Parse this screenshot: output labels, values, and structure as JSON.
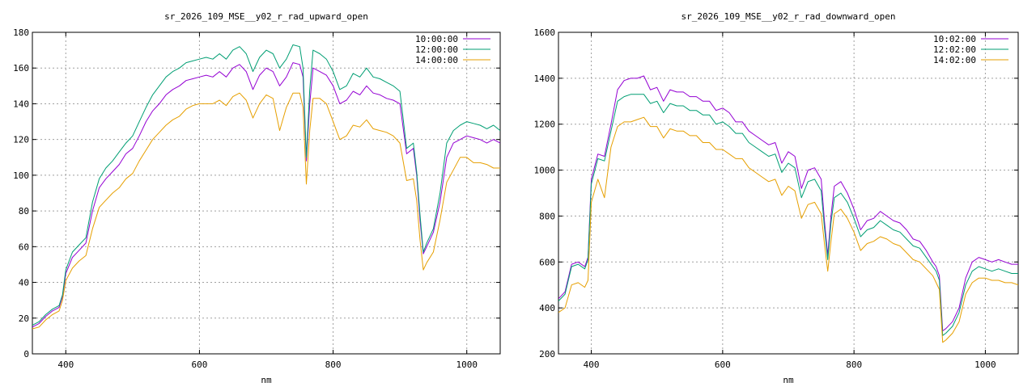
{
  "chart_data": [
    {
      "type": "line",
      "title": "sr_2026_109_MSE__y02_r_rad_upward_open",
      "xlabel": "nm",
      "ylabel": "",
      "xlim": [
        350,
        1050
      ],
      "ylim": [
        0,
        180
      ],
      "xticks": [
        400,
        600,
        800,
        1000
      ],
      "yticks": [
        0,
        20,
        40,
        60,
        80,
        100,
        120,
        140,
        160,
        180
      ],
      "grid": true,
      "legend_position": "top-right",
      "series": [
        {
          "name": "10:00:00",
          "color": "#9400d3",
          "x": [
            350,
            360,
            370,
            380,
            390,
            395,
            400,
            410,
            420,
            430,
            440,
            450,
            460,
            470,
            480,
            490,
            500,
            510,
            520,
            530,
            540,
            550,
            560,
            570,
            580,
            590,
            600,
            610,
            620,
            630,
            640,
            650,
            660,
            670,
            680,
            690,
            700,
            710,
            720,
            730,
            740,
            750,
            755,
            760,
            765,
            770,
            780,
            790,
            800,
            810,
            820,
            830,
            840,
            850,
            860,
            870,
            880,
            890,
            900,
            910,
            920,
            925,
            930,
            935,
            940,
            950,
            960,
            970,
            980,
            990,
            1000,
            1010,
            1020,
            1030,
            1040,
            1050
          ],
          "y": [
            15,
            17,
            21,
            24,
            26,
            32,
            45,
            54,
            58,
            62,
            80,
            93,
            98,
            102,
            106,
            112,
            115,
            122,
            130,
            136,
            140,
            145,
            148,
            150,
            153,
            154,
            155,
            156,
            155,
            158,
            155,
            160,
            162,
            158,
            148,
            156,
            160,
            158,
            150,
            155,
            163,
            162,
            155,
            108,
            140,
            160,
            158,
            156,
            150,
            140,
            142,
            147,
            145,
            150,
            146,
            145,
            143,
            142,
            140,
            112,
            115,
            100,
            75,
            56,
            60,
            68,
            85,
            110,
            118,
            120,
            122,
            121,
            120,
            118,
            120,
            118
          ]
        },
        {
          "name": "12:00:00",
          "color": "#009e73",
          "x": [
            350,
            360,
            370,
            380,
            390,
            395,
            400,
            410,
            420,
            430,
            440,
            450,
            460,
            470,
            480,
            490,
            500,
            510,
            520,
            530,
            540,
            550,
            560,
            570,
            580,
            590,
            600,
            610,
            620,
            630,
            640,
            650,
            660,
            670,
            680,
            690,
            700,
            710,
            720,
            730,
            740,
            750,
            755,
            760,
            765,
            770,
            780,
            790,
            800,
            810,
            820,
            830,
            840,
            850,
            860,
            870,
            880,
            890,
            900,
            910,
            920,
            925,
            930,
            935,
            940,
            950,
            960,
            970,
            980,
            990,
            1000,
            1010,
            1020,
            1030,
            1040,
            1050
          ],
          "y": [
            16,
            18,
            22,
            25,
            27,
            33,
            47,
            57,
            61,
            65,
            85,
            98,
            104,
            108,
            113,
            118,
            122,
            130,
            138,
            145,
            150,
            155,
            158,
            160,
            163,
            164,
            165,
            166,
            165,
            168,
            165,
            170,
            172,
            168,
            158,
            166,
            170,
            168,
            160,
            165,
            173,
            172,
            160,
            110,
            148,
            170,
            168,
            165,
            158,
            148,
            150,
            157,
            155,
            160,
            155,
            154,
            152,
            150,
            147,
            115,
            118,
            102,
            78,
            57,
            62,
            70,
            90,
            118,
            125,
            128,
            130,
            129,
            128,
            126,
            128,
            125
          ]
        },
        {
          "name": "14:00:00",
          "color": "#e69f00",
          "x": [
            350,
            360,
            370,
            380,
            390,
            395,
            400,
            410,
            420,
            430,
            440,
            450,
            460,
            470,
            480,
            490,
            500,
            510,
            520,
            530,
            540,
            550,
            560,
            570,
            580,
            590,
            600,
            610,
            620,
            630,
            640,
            650,
            660,
            670,
            680,
            690,
            700,
            710,
            720,
            730,
            740,
            750,
            755,
            760,
            765,
            770,
            780,
            790,
            800,
            810,
            820,
            830,
            840,
            850,
            860,
            870,
            880,
            890,
            900,
            910,
            920,
            925,
            930,
            935,
            940,
            950,
            960,
            970,
            980,
            990,
            1000,
            1010,
            1020,
            1030,
            1040,
            1050
          ],
          "y": [
            14,
            15,
            19,
            22,
            24,
            30,
            41,
            48,
            52,
            55,
            70,
            82,
            86,
            90,
            93,
            98,
            101,
            108,
            114,
            120,
            124,
            128,
            131,
            133,
            137,
            139,
            140,
            140,
            140,
            142,
            139,
            144,
            146,
            142,
            132,
            140,
            145,
            143,
            125,
            138,
            146,
            146,
            138,
            95,
            125,
            143,
            143,
            140,
            130,
            120,
            122,
            128,
            127,
            131,
            126,
            125,
            124,
            122,
            118,
            97,
            98,
            86,
            64,
            47,
            51,
            57,
            75,
            96,
            103,
            110,
            110,
            107,
            107,
            106,
            104,
            104
          ]
        }
      ]
    },
    {
      "type": "line",
      "title": "sr_2026_109_MSE__y02_r_rad_downward_open",
      "xlabel": "nm",
      "ylabel": "",
      "xlim": [
        350,
        1050
      ],
      "ylim": [
        200,
        1600
      ],
      "xticks": [
        400,
        600,
        800,
        1000
      ],
      "yticks": [
        200,
        400,
        600,
        800,
        1000,
        1200,
        1400,
        1600
      ],
      "grid": true,
      "legend_position": "top-right",
      "series": [
        {
          "name": "10:02:00",
          "color": "#9400d3",
          "x": [
            350,
            360,
            370,
            380,
            390,
            395,
            400,
            410,
            420,
            430,
            440,
            450,
            460,
            470,
            480,
            490,
            500,
            510,
            520,
            530,
            540,
            550,
            560,
            570,
            580,
            590,
            600,
            610,
            620,
            630,
            640,
            650,
            660,
            670,
            680,
            690,
            700,
            710,
            720,
            730,
            740,
            750,
            755,
            760,
            765,
            770,
            780,
            790,
            800,
            810,
            820,
            830,
            840,
            850,
            860,
            870,
            880,
            890,
            900,
            910,
            920,
            925,
            930,
            935,
            940,
            950,
            960,
            970,
            980,
            990,
            1000,
            1010,
            1020,
            1030,
            1040,
            1050
          ],
          "y": [
            440,
            470,
            590,
            600,
            580,
            620,
            960,
            1070,
            1060,
            1200,
            1350,
            1390,
            1400,
            1400,
            1410,
            1350,
            1360,
            1300,
            1350,
            1340,
            1340,
            1320,
            1320,
            1300,
            1300,
            1260,
            1270,
            1250,
            1210,
            1210,
            1170,
            1150,
            1130,
            1110,
            1120,
            1030,
            1080,
            1060,
            920,
            1000,
            1010,
            960,
            780,
            630,
            800,
            930,
            950,
            900,
            830,
            740,
            780,
            790,
            820,
            800,
            780,
            770,
            740,
            700,
            690,
            650,
            600,
            580,
            540,
            300,
            310,
            340,
            400,
            530,
            600,
            620,
            610,
            600,
            610,
            600,
            590,
            590
          ]
        },
        {
          "name": "12:02:00",
          "color": "#009e73",
          "x": [
            350,
            360,
            370,
            380,
            390,
            395,
            400,
            410,
            420,
            430,
            440,
            450,
            460,
            470,
            480,
            490,
            500,
            510,
            520,
            530,
            540,
            550,
            560,
            570,
            580,
            590,
            600,
            610,
            620,
            630,
            640,
            650,
            660,
            670,
            680,
            690,
            700,
            710,
            720,
            730,
            740,
            750,
            755,
            760,
            765,
            770,
            780,
            790,
            800,
            810,
            820,
            830,
            840,
            850,
            860,
            870,
            880,
            890,
            900,
            910,
            920,
            925,
            930,
            935,
            940,
            950,
            960,
            970,
            980,
            990,
            1000,
            1010,
            1020,
            1030,
            1040,
            1050
          ],
          "y": [
            430,
            460,
            580,
            590,
            570,
            610,
            940,
            1050,
            1040,
            1170,
            1300,
            1320,
            1330,
            1330,
            1330,
            1290,
            1300,
            1250,
            1290,
            1280,
            1280,
            1260,
            1260,
            1240,
            1240,
            1200,
            1210,
            1190,
            1160,
            1160,
            1120,
            1100,
            1080,
            1060,
            1070,
            990,
            1030,
            1010,
            880,
            950,
            960,
            910,
            750,
            610,
            770,
            880,
            900,
            860,
            790,
            710,
            740,
            750,
            780,
            760,
            740,
            730,
            700,
            670,
            660,
            620,
            580,
            560,
            520,
            280,
            290,
            320,
            380,
            500,
            560,
            580,
            570,
            560,
            570,
            560,
            550,
            550
          ]
        },
        {
          "name": "14:02:00",
          "color": "#e69f00",
          "x": [
            350,
            360,
            370,
            380,
            390,
            395,
            400,
            410,
            420,
            430,
            440,
            450,
            460,
            470,
            480,
            490,
            500,
            510,
            520,
            530,
            540,
            550,
            560,
            570,
            580,
            590,
            600,
            610,
            620,
            630,
            640,
            650,
            660,
            670,
            680,
            690,
            700,
            710,
            720,
            730,
            740,
            750,
            755,
            760,
            765,
            770,
            780,
            790,
            800,
            810,
            820,
            830,
            840,
            850,
            860,
            870,
            880,
            890,
            900,
            910,
            920,
            925,
            930,
            935,
            940,
            950,
            960,
            970,
            980,
            990,
            1000,
            1010,
            1020,
            1030,
            1040,
            1050
          ],
          "y": [
            380,
            400,
            500,
            510,
            490,
            520,
            860,
            960,
            880,
            1100,
            1190,
            1210,
            1210,
            1220,
            1230,
            1190,
            1190,
            1140,
            1180,
            1170,
            1170,
            1150,
            1150,
            1120,
            1120,
            1090,
            1090,
            1070,
            1050,
            1050,
            1010,
            990,
            970,
            950,
            960,
            890,
            930,
            910,
            790,
            850,
            860,
            810,
            680,
            560,
            690,
            810,
            830,
            790,
            730,
            650,
            680,
            690,
            710,
            700,
            680,
            670,
            640,
            610,
            600,
            570,
            540,
            510,
            480,
            250,
            260,
            290,
            340,
            460,
            510,
            530,
            530,
            520,
            520,
            510,
            510,
            500
          ]
        }
      ]
    }
  ]
}
